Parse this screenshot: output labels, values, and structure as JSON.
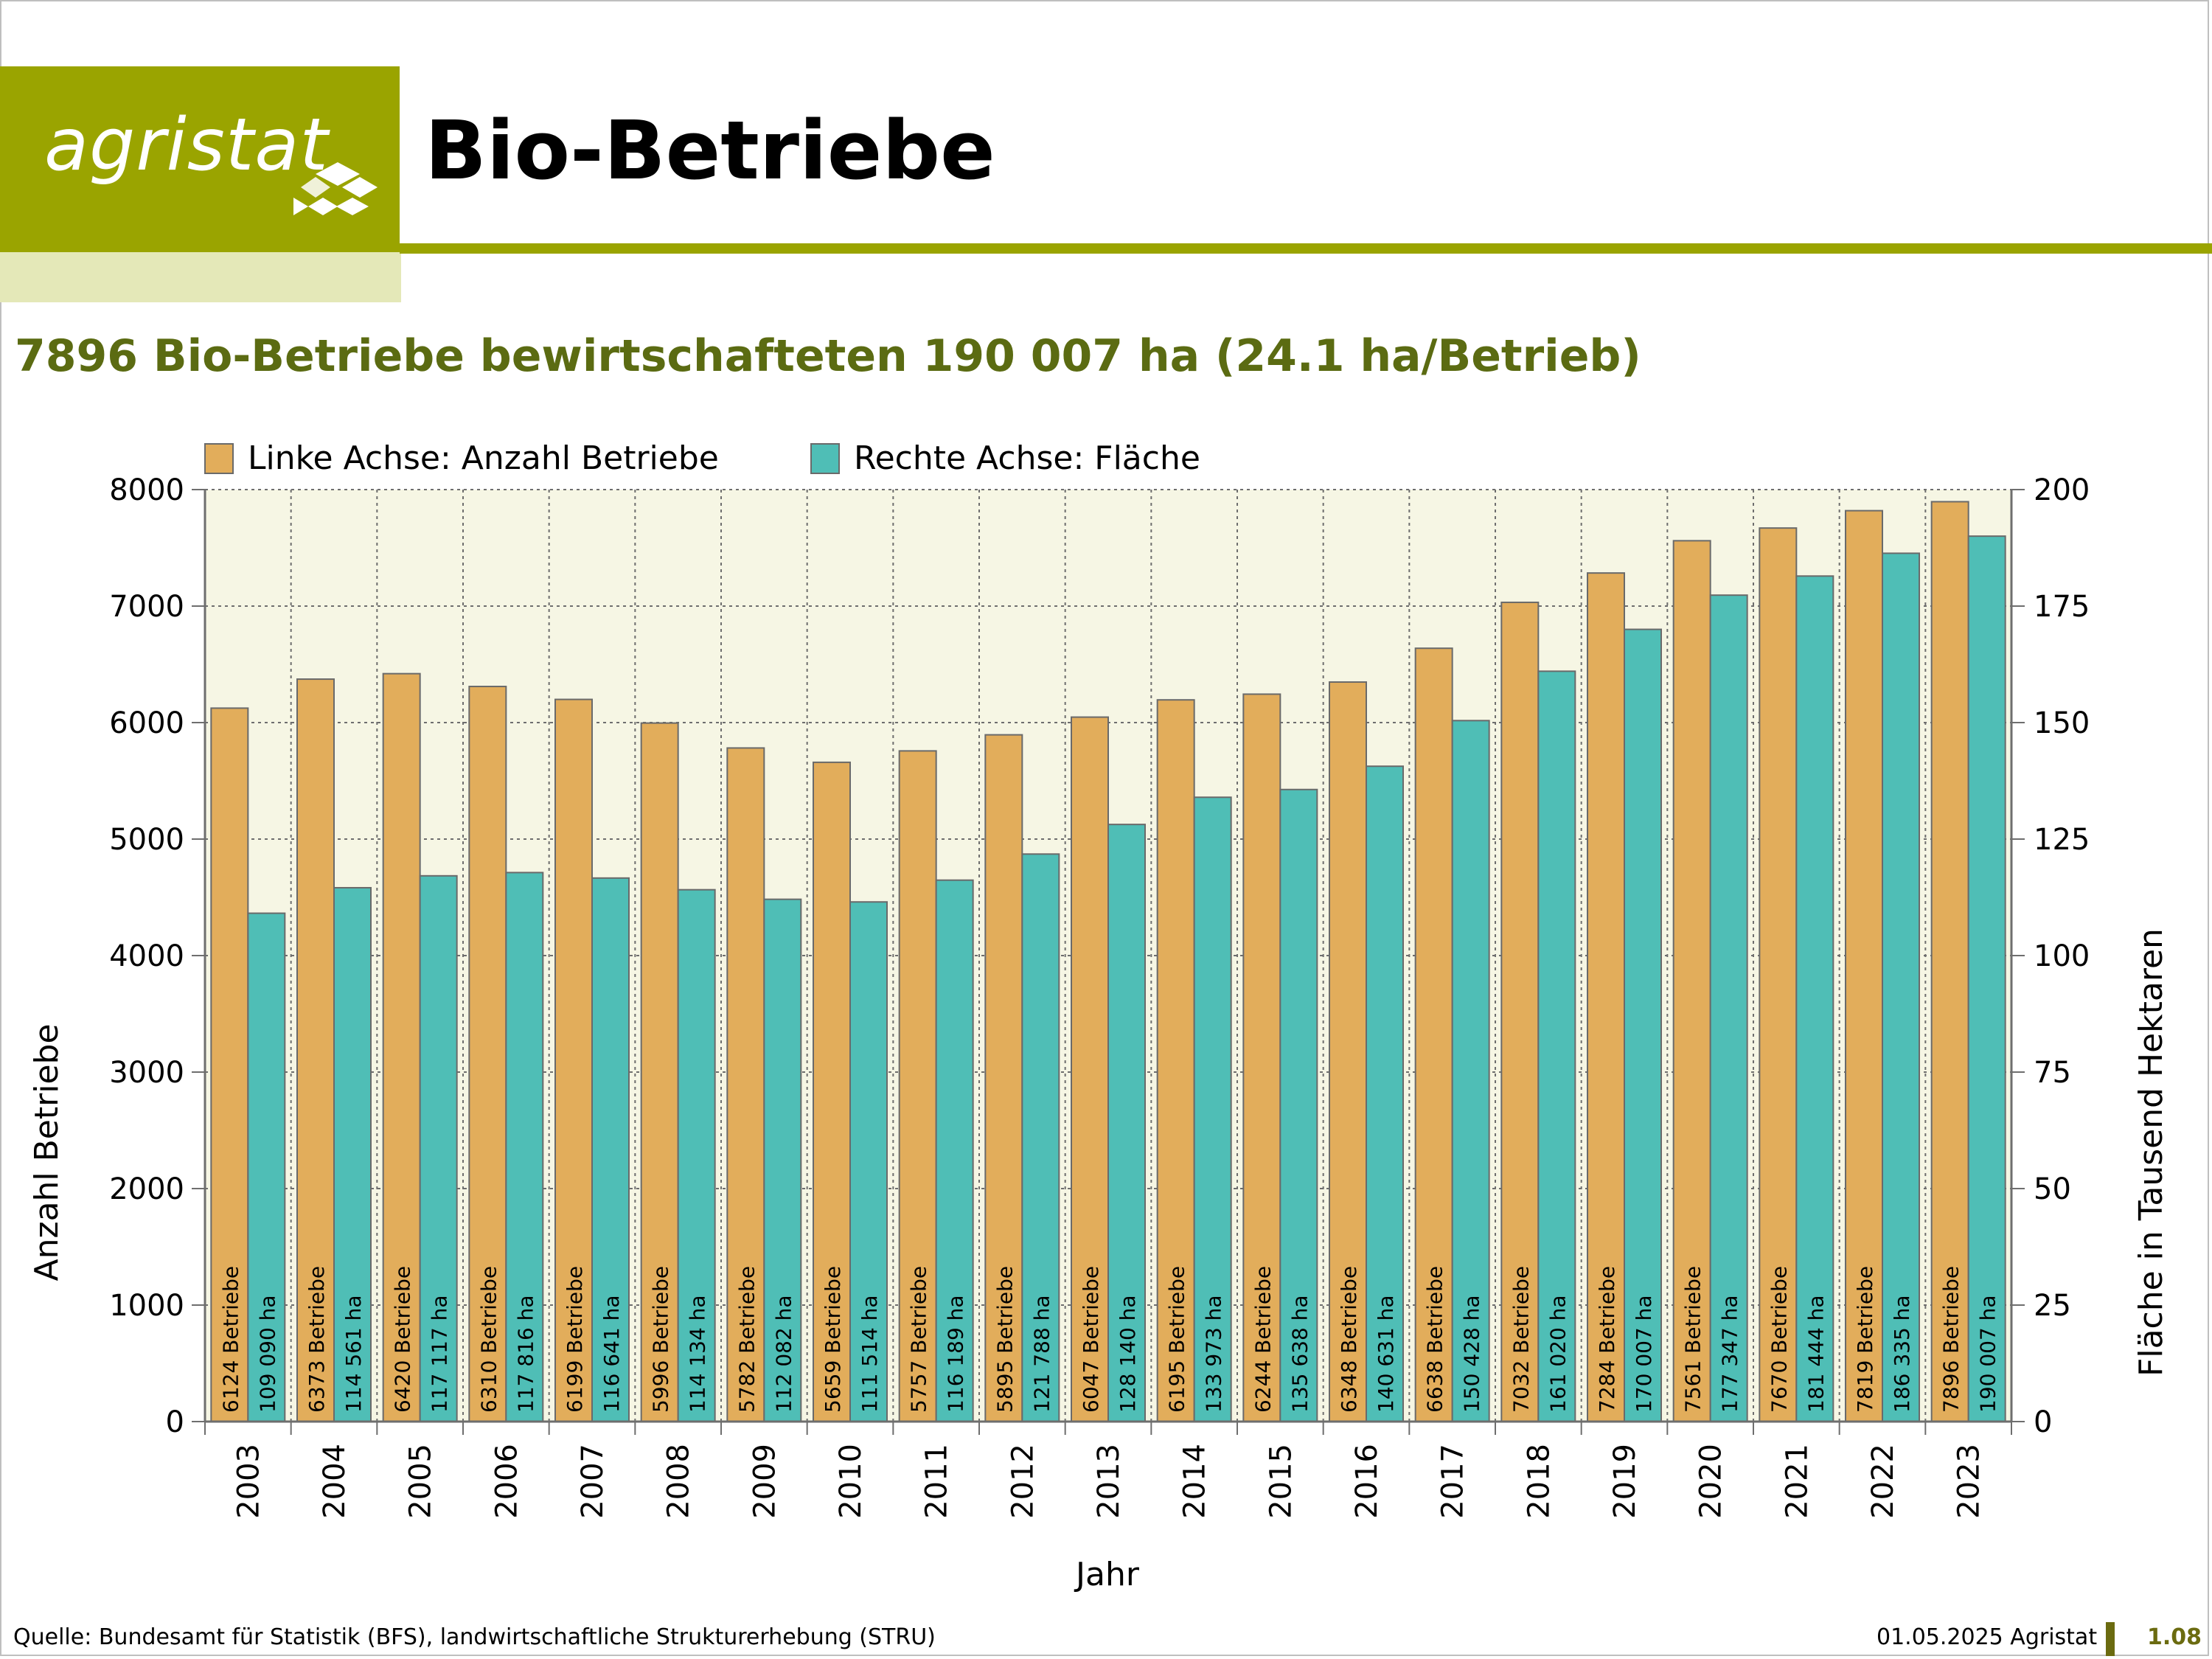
{
  "logo": {
    "text": "agristat"
  },
  "header": {
    "title": "Bio-Betriebe",
    "subtitle": "7896 Bio-Betriebe bewirtschafteten 190 007 ha (24.1 ha/Betrieb)"
  },
  "footer": {
    "source": "Quelle: Bundesamt für Statistik (BFS), landwirtschaftliche Strukturerhebung (STRU)",
    "date": "01.05.2025 Agristat",
    "page": "1.08"
  },
  "colors": {
    "brand": "#9aa400",
    "brand_light": "#e4e8b8",
    "subtitle": "#5b6b12",
    "betriebe": "#e2ad5b",
    "flaeche": "#4fbeb6",
    "plot_bg": "#f6f6e4"
  },
  "chart_data": {
    "type": "bar",
    "xlabel": "Jahr",
    "ylabel": "Anzahl Betriebe",
    "y2label": "Fläche in Tausend Hektaren",
    "ylim": [
      0,
      8000
    ],
    "y2lim": [
      0,
      200
    ],
    "yticks": [
      0,
      1000,
      2000,
      3000,
      4000,
      5000,
      6000,
      7000,
      8000
    ],
    "y2ticks": [
      0,
      25,
      50,
      75,
      100,
      125,
      150,
      175,
      200
    ],
    "grid": true,
    "legend_position": "top-left",
    "categories": [
      "2003",
      "2004",
      "2005",
      "2006",
      "2007",
      "2008",
      "2009",
      "2010",
      "2011",
      "2012",
      "2013",
      "2014",
      "2015",
      "2016",
      "2017",
      "2018",
      "2019",
      "2020",
      "2021",
      "2022",
      "2023"
    ],
    "series": [
      {
        "name": "Linke Achse: Anzahl Betriebe",
        "axis": "left",
        "values": [
          6124,
          6373,
          6420,
          6310,
          6199,
          5996,
          5782,
          5659,
          5757,
          5895,
          6047,
          6195,
          6244,
          6348,
          6638,
          7032,
          7284,
          7561,
          7670,
          7819,
          7896
        ],
        "labels": [
          "6124 Betriebe",
          "6373 Betriebe",
          "6420 Betriebe",
          "6310 Betriebe",
          "6199 Betriebe",
          "5996 Betriebe",
          "5782 Betriebe",
          "5659 Betriebe",
          "5757 Betriebe",
          "5895 Betriebe",
          "6047 Betriebe",
          "6195 Betriebe",
          "6244 Betriebe",
          "6348 Betriebe",
          "6638 Betriebe",
          "7032 Betriebe",
          "7284 Betriebe",
          "7561 Betriebe",
          "7670 Betriebe",
          "7819 Betriebe",
          "7896 Betriebe"
        ]
      },
      {
        "name": "Rechte Achse: Fläche",
        "axis": "right",
        "values": [
          109.09,
          114.561,
          117.117,
          117.816,
          116.641,
          114.134,
          112.082,
          111.514,
          116.189,
          121.788,
          128.14,
          133.973,
          135.638,
          140.631,
          150.428,
          161.02,
          170.007,
          177.347,
          181.444,
          186.335,
          190.007
        ],
        "labels": [
          "109 090 ha",
          "114 561 ha",
          "117 117 ha",
          "117 816 ha",
          "116 641 ha",
          "114 134 ha",
          "112 082 ha",
          "111 514 ha",
          "116 189 ha",
          "121 788 ha",
          "128 140 ha",
          "133 973 ha",
          "135 638 ha",
          "140 631 ha",
          "150 428 ha",
          "161 020 ha",
          "170 007 ha",
          "177 347 ha",
          "181 444 ha",
          "186 335 ha",
          "190 007 ha"
        ]
      }
    ]
  }
}
